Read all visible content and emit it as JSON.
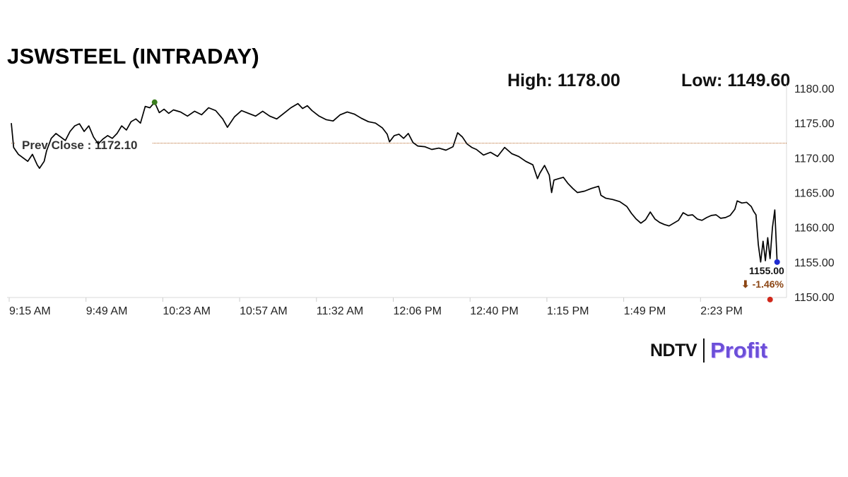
{
  "header": {
    "title": "JSWSTEEL (INTRADAY)",
    "high_label": "High: 1178.00",
    "low_label": "Low: 1149.60"
  },
  "logo": {
    "ndtv": "NDTV",
    "profit": "Profit"
  },
  "colors": {
    "line": "#000000",
    "prev_close_line": "#b5652a",
    "high_marker": "#3a7d1e",
    "low_marker": "#d0281b",
    "last_marker": "#1f2bd0",
    "change_text": "#8b4513"
  },
  "chart_data": {
    "type": "line",
    "title": "JSWSTEEL (INTRADAY)",
    "y_ticks": [
      "1180.00",
      "1175.00",
      "1170.00",
      "1165.00",
      "1160.00",
      "1155.00",
      "1150.00"
    ],
    "ylim": [
      1150,
      1180
    ],
    "x_ticks": [
      "9:15 AM",
      "9:49 AM",
      "10:23 AM",
      "10:57 AM",
      "11:32 AM",
      "12:06 PM",
      "12:40 PM",
      "1:15 PM",
      "1:49 PM",
      "2:23 PM"
    ],
    "xlim_minutes": [
      555,
      885
    ],
    "prev_close": 1172.1,
    "prev_close_label": "Prev Close : 1172.10",
    "high": {
      "value": 1178.0,
      "time_minutes": 616
    },
    "low": {
      "value": 1149.6,
      "time_minutes": 878
    },
    "last": {
      "value": 1155.0,
      "label": "1155.00",
      "change_label": "⬇ -1.46%"
    },
    "series": [
      {
        "points": [
          [
            555,
            1175.0
          ],
          [
            556,
            1171.5
          ],
          [
            557,
            1171.0
          ],
          [
            558,
            1170.5
          ],
          [
            560,
            1170.0
          ],
          [
            562,
            1169.5
          ],
          [
            564,
            1170.5
          ],
          [
            566,
            1169.0
          ],
          [
            567,
            1168.5
          ],
          [
            569,
            1169.5
          ],
          [
            570,
            1171.0
          ],
          [
            572,
            1172.8
          ],
          [
            574,
            1173.5
          ],
          [
            576,
            1173.0
          ],
          [
            578,
            1172.5
          ],
          [
            580,
            1173.8
          ],
          [
            582,
            1174.6
          ],
          [
            584,
            1174.9
          ],
          [
            586,
            1173.8
          ],
          [
            588,
            1174.6
          ],
          [
            590,
            1173.0
          ],
          [
            592,
            1172.0
          ],
          [
            594,
            1172.7
          ],
          [
            596,
            1173.2
          ],
          [
            598,
            1172.8
          ],
          [
            600,
            1173.5
          ],
          [
            602,
            1174.6
          ],
          [
            604,
            1174.0
          ],
          [
            606,
            1175.2
          ],
          [
            608,
            1175.6
          ],
          [
            610,
            1175.0
          ],
          [
            612,
            1177.4
          ],
          [
            614,
            1177.2
          ],
          [
            616,
            1178.0
          ],
          [
            618,
            1176.5
          ],
          [
            620,
            1177.0
          ],
          [
            622,
            1176.4
          ],
          [
            624,
            1176.9
          ],
          [
            627,
            1176.6
          ],
          [
            630,
            1176.0
          ],
          [
            633,
            1176.7
          ],
          [
            636,
            1176.2
          ],
          [
            639,
            1177.2
          ],
          [
            642,
            1176.8
          ],
          [
            645,
            1175.6
          ],
          [
            647,
            1174.4
          ],
          [
            650,
            1175.9
          ],
          [
            653,
            1176.8
          ],
          [
            656,
            1176.4
          ],
          [
            659,
            1176.0
          ],
          [
            662,
            1176.7
          ],
          [
            665,
            1176.0
          ],
          [
            668,
            1175.6
          ],
          [
            671,
            1176.4
          ],
          [
            674,
            1177.2
          ],
          [
            677,
            1177.8
          ],
          [
            679,
            1177.1
          ],
          [
            681,
            1177.5
          ],
          [
            683,
            1176.8
          ],
          [
            686,
            1176.0
          ],
          [
            689,
            1175.5
          ],
          [
            692,
            1175.3
          ],
          [
            695,
            1176.2
          ],
          [
            698,
            1176.6
          ],
          [
            701,
            1176.3
          ],
          [
            704,
            1175.7
          ],
          [
            707,
            1175.2
          ],
          [
            710,
            1175.0
          ],
          [
            713,
            1174.3
          ],
          [
            715,
            1173.4
          ],
          [
            716,
            1172.3
          ],
          [
            718,
            1173.2
          ],
          [
            720,
            1173.4
          ],
          [
            722,
            1172.8
          ],
          [
            724,
            1173.5
          ],
          [
            726,
            1172.2
          ],
          [
            728,
            1171.7
          ],
          [
            731,
            1171.6
          ],
          [
            734,
            1171.2
          ],
          [
            737,
            1171.4
          ],
          [
            740,
            1171.1
          ],
          [
            743,
            1171.6
          ],
          [
            745,
            1173.6
          ],
          [
            747,
            1173.0
          ],
          [
            749,
            1172.0
          ],
          [
            751,
            1171.5
          ],
          [
            753,
            1171.2
          ],
          [
            756,
            1170.4
          ],
          [
            759,
            1170.8
          ],
          [
            762,
            1170.2
          ],
          [
            765,
            1171.5
          ],
          [
            768,
            1170.6
          ],
          [
            771,
            1170.2
          ],
          [
            774,
            1169.5
          ],
          [
            777,
            1169.0
          ],
          [
            779,
            1167.0
          ],
          [
            780,
            1167.8
          ],
          [
            782,
            1168.9
          ],
          [
            784,
            1167.5
          ],
          [
            785,
            1165.0
          ],
          [
            786,
            1166.8
          ],
          [
            788,
            1167.0
          ],
          [
            790,
            1167.2
          ],
          [
            792,
            1166.3
          ],
          [
            794,
            1165.6
          ],
          [
            796,
            1165.0
          ],
          [
            799,
            1165.2
          ],
          [
            802,
            1165.6
          ],
          [
            805,
            1165.9
          ],
          [
            806,
            1164.6
          ],
          [
            808,
            1164.2
          ],
          [
            811,
            1164.0
          ],
          [
            814,
            1163.7
          ],
          [
            817,
            1163.0
          ],
          [
            819,
            1162.0
          ],
          [
            821,
            1161.2
          ],
          [
            823,
            1160.6
          ],
          [
            825,
            1161.1
          ],
          [
            827,
            1162.2
          ],
          [
            829,
            1161.2
          ],
          [
            831,
            1160.7
          ],
          [
            833,
            1160.4
          ],
          [
            835,
            1160.2
          ],
          [
            837,
            1160.6
          ],
          [
            839,
            1161.0
          ],
          [
            841,
            1162.1
          ],
          [
            843,
            1161.7
          ],
          [
            845,
            1161.8
          ],
          [
            847,
            1161.2
          ],
          [
            849,
            1161.0
          ],
          [
            851,
            1161.4
          ],
          [
            853,
            1161.7
          ],
          [
            855,
            1161.8
          ],
          [
            857,
            1161.3
          ],
          [
            859,
            1161.4
          ],
          [
            861,
            1161.7
          ],
          [
            863,
            1162.6
          ],
          [
            864,
            1163.8
          ],
          [
            866,
            1163.5
          ],
          [
            868,
            1163.6
          ],
          [
            870,
            1163.0
          ],
          [
            871,
            1162.3
          ],
          [
            872,
            1161.8
          ],
          [
            873,
            1157.5
          ],
          [
            874,
            1155.0
          ],
          [
            875,
            1158.0
          ],
          [
            876,
            1155.2
          ],
          [
            877,
            1158.5
          ],
          [
            878,
            1155.5
          ],
          [
            879,
            1160.0
          ],
          [
            880,
            1162.5
          ],
          [
            881,
            1155.0
          ]
        ]
      }
    ]
  }
}
